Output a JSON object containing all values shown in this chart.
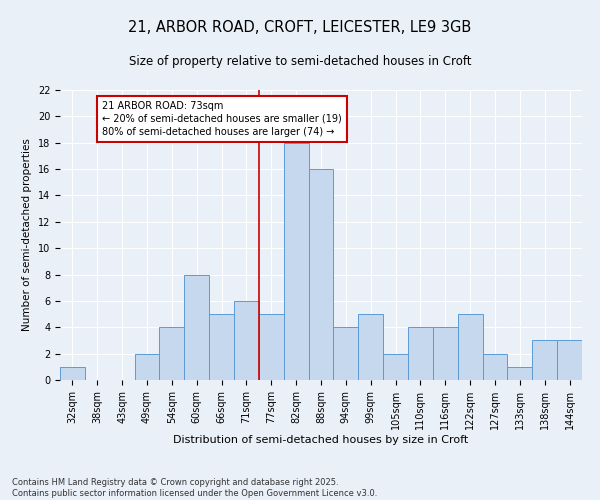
{
  "title1": "21, ARBOR ROAD, CROFT, LEICESTER, LE9 3GB",
  "title2": "Size of property relative to semi-detached houses in Croft",
  "xlabel": "Distribution of semi-detached houses by size in Croft",
  "ylabel": "Number of semi-detached properties",
  "categories": [
    "32sqm",
    "38sqm",
    "43sqm",
    "49sqm",
    "54sqm",
    "60sqm",
    "66sqm",
    "71sqm",
    "77sqm",
    "82sqm",
    "88sqm",
    "94sqm",
    "99sqm",
    "105sqm",
    "110sqm",
    "116sqm",
    "122sqm",
    "127sqm",
    "133sqm",
    "138sqm",
    "144sqm"
  ],
  "values": [
    1,
    0,
    0,
    2,
    4,
    8,
    5,
    6,
    5,
    18,
    16,
    4,
    5,
    2,
    4,
    4,
    5,
    2,
    1,
    3,
    3
  ],
  "bar_color": "#c5d8ed",
  "bar_edge_color": "#5b9bd5",
  "bar_width": 1.0,
  "ylim": [
    0,
    22
  ],
  "yticks": [
    0,
    2,
    4,
    6,
    8,
    10,
    12,
    14,
    16,
    18,
    20,
    22
  ],
  "vline_index": 7,
  "vline_color": "#cc0000",
  "annotation_text": "21 ARBOR ROAD: 73sqm\n← 20% of semi-detached houses are smaller (19)\n80% of semi-detached houses are larger (74) →",
  "annotation_box_color": "#ffffff",
  "annotation_box_edge": "#cc0000",
  "footer1": "Contains HM Land Registry data © Crown copyright and database right 2025.",
  "footer2": "Contains public sector information licensed under the Open Government Licence v3.0.",
  "bg_color": "#eaf0f8",
  "plot_bg_color": "#eaf0f8",
  "title1_fontsize": 10.5,
  "title2_fontsize": 8.5,
  "xlabel_fontsize": 8,
  "ylabel_fontsize": 7.5,
  "tick_fontsize": 7,
  "footer_fontsize": 6,
  "annotation_fontsize": 7
}
